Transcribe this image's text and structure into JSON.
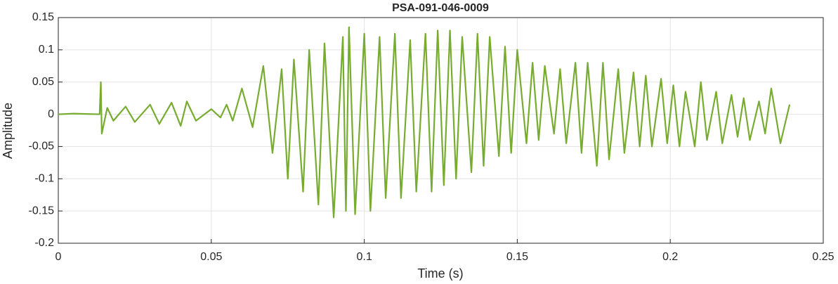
{
  "chart_data": {
    "type": "line",
    "title": "PSA-091-046-0009",
    "xlabel": "Time (s)",
    "ylabel": "Amplitude",
    "xlim": [
      0,
      0.25
    ],
    "xticks": [
      0,
      0.05,
      0.1,
      0.15,
      0.2,
      0.25
    ],
    "ylim": [
      -0.2,
      0.15
    ],
    "yticks": [
      -0.2,
      -0.15,
      -0.1,
      -0.05,
      0,
      0.05,
      0.1,
      0.15
    ],
    "grid": true,
    "series": [
      {
        "color": "#77ac30",
        "x": [
          0,
          0.005,
          0.0135,
          0.0139,
          0.0142,
          0.016,
          0.018,
          0.022,
          0.025,
          0.03,
          0.033,
          0.037,
          0.04,
          0.042,
          0.045,
          0.05,
          0.053,
          0.055,
          0.057,
          0.06,
          0.0635,
          0.067,
          0.07,
          0.073,
          0.075,
          0.077,
          0.08,
          0.082,
          0.085,
          0.087,
          0.09,
          0.093,
          0.094,
          0.095,
          0.097,
          0.1,
          0.102,
          0.105,
          0.107,
          0.11,
          0.112,
          0.115,
          0.117,
          0.12,
          0.122,
          0.124,
          0.126,
          0.128,
          0.13,
          0.132,
          0.135,
          0.137,
          0.139,
          0.141,
          0.144,
          0.146,
          0.148,
          0.15,
          0.153,
          0.155,
          0.157,
          0.159,
          0.162,
          0.164,
          0.166,
          0.169,
          0.171,
          0.173,
          0.176,
          0.178,
          0.18,
          0.183,
          0.185,
          0.188,
          0.19,
          0.192,
          0.194,
          0.197,
          0.199,
          0.201,
          0.203,
          0.205,
          0.208,
          0.21,
          0.212,
          0.215,
          0.217,
          0.22,
          0.222,
          0.224,
          0.226,
          0.229,
          0.231,
          0.233,
          0.236,
          0.239
        ],
        "values": [
          0,
          0.001,
          0,
          0.05,
          -0.03,
          0.01,
          -0.01,
          0.012,
          -0.012,
          0.015,
          -0.015,
          0.018,
          -0.018,
          0.02,
          -0.01,
          0.008,
          -0.005,
          0.015,
          -0.01,
          0.04,
          -0.02,
          0.075,
          -0.06,
          0.07,
          -0.1,
          0.085,
          -0.12,
          0.1,
          -0.14,
          0.11,
          -0.16,
          0.12,
          -0.15,
          0.135,
          -0.155,
          0.125,
          -0.15,
          0.12,
          -0.13,
          0.125,
          -0.13,
          0.115,
          -0.12,
          0.125,
          -0.12,
          0.13,
          -0.11,
          0.13,
          -0.1,
          0.12,
          -0.09,
          0.125,
          -0.08,
          0.12,
          -0.065,
          0.105,
          -0.06,
          0.1,
          -0.045,
          0.08,
          -0.04,
          0.075,
          -0.03,
          0.07,
          -0.045,
          0.08,
          -0.06,
          0.08,
          -0.08,
          0.08,
          -0.07,
          0.07,
          -0.06,
          0.065,
          -0.05,
          0.06,
          -0.05,
          0.055,
          -0.045,
          0.045,
          -0.05,
          0.035,
          -0.05,
          0.05,
          -0.04,
          0.035,
          -0.045,
          0.03,
          -0.035,
          0.025,
          -0.04,
          0.02,
          -0.03,
          0.04,
          -0.045,
          0.015
        ]
      }
    ]
  }
}
